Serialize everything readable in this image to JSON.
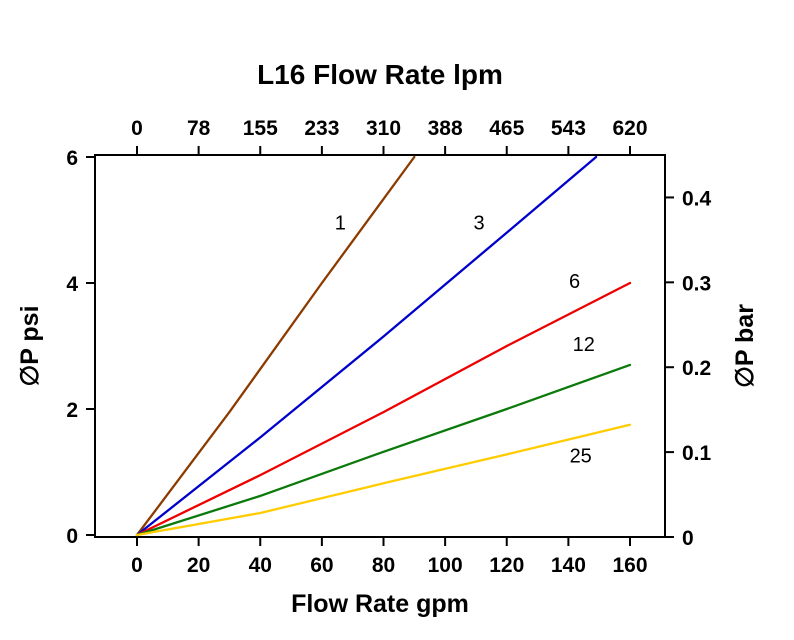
{
  "chart_data": {
    "type": "line",
    "title": "L16 Flow Rate lpm",
    "xlabel": "Flow Rate gpm",
    "ylabel_left": "∅P psi",
    "ylabel_right": "∅P bar",
    "x_bottom": {
      "range": [
        0,
        160
      ],
      "ticks": [
        0,
        20,
        40,
        60,
        80,
        100,
        120,
        140,
        160
      ],
      "tick_labels": [
        "0",
        "20",
        "40",
        "60",
        "80",
        "100",
        "120",
        "140",
        "160"
      ]
    },
    "x_top": {
      "units": "lpm",
      "tick_labels": [
        "0",
        "78",
        "155",
        "233",
        "310",
        "388",
        "465",
        "543",
        "620"
      ]
    },
    "y_left": {
      "range": [
        0,
        6
      ],
      "ticks": [
        0,
        2,
        4,
        6
      ],
      "tick_labels": [
        "0",
        "2",
        "4",
        "6"
      ]
    },
    "y_right": {
      "range": [
        0,
        0.45
      ],
      "ticks": [
        0,
        0.1,
        0.2,
        0.3,
        0.4
      ],
      "tick_labels": [
        "0",
        "0.1",
        "0.2",
        "0.3",
        "0.4"
      ]
    },
    "grid": false,
    "series": [
      {
        "name": "1",
        "color": "#8C3B00",
        "points": [
          [
            0,
            0
          ],
          [
            30,
            1.95
          ],
          [
            60,
            4.0
          ],
          [
            90,
            6.0
          ]
        ],
        "label_pos": [
          66,
          4.85
        ]
      },
      {
        "name": "3",
        "color": "#0000CC",
        "points": [
          [
            0,
            0
          ],
          [
            40,
            1.55
          ],
          [
            80,
            3.15
          ],
          [
            120,
            4.8
          ],
          [
            149,
            6.0
          ]
        ],
        "label_pos": [
          111,
          4.85
        ]
      },
      {
        "name": "6",
        "color": "#EE0000",
        "points": [
          [
            0,
            0
          ],
          [
            40,
            0.95
          ],
          [
            80,
            1.95
          ],
          [
            120,
            3.0
          ],
          [
            160,
            4.0
          ]
        ],
        "label_pos": [
          142,
          3.92
        ]
      },
      {
        "name": "12",
        "color": "#0B7A0B",
        "points": [
          [
            0,
            0
          ],
          [
            40,
            0.62
          ],
          [
            80,
            1.32
          ],
          [
            120,
            2.0
          ],
          [
            160,
            2.7
          ]
        ],
        "label_pos": [
          145,
          2.92
        ]
      },
      {
        "name": "25",
        "color": "#FFCC00",
        "points": [
          [
            0,
            0
          ],
          [
            40,
            0.35
          ],
          [
            80,
            0.82
          ],
          [
            120,
            1.28
          ],
          [
            160,
            1.75
          ]
        ],
        "label_pos": [
          144,
          1.15
        ]
      }
    ]
  }
}
